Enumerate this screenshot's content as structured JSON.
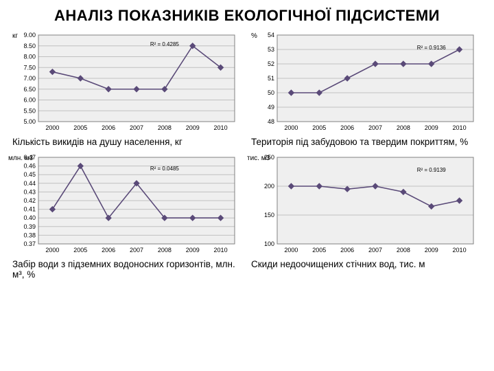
{
  "title": "АНАЛІЗ ПОКАЗНИКІВ ЕКОЛОГІЧНОЇ ПІДСИСТЕМИ",
  "common": {
    "plot_bg": "#efefef",
    "grid_color": "#c0c0c0",
    "axis_color": "#808080",
    "tick_font": 9,
    "marker_color": "#5a4a78",
    "line_color": "#5a4a78",
    "r2_font": 8,
    "r2_color": "#000000"
  },
  "charts": {
    "c1": {
      "unit": "кг",
      "caption": "Кількість викидів на душу населення, кг",
      "x": [
        "2000",
        "2005",
        "2006",
        "2007",
        "2008",
        "2009",
        "2010"
      ],
      "y": [
        7.3,
        7.0,
        6.5,
        6.5,
        6.5,
        8.5,
        7.5
      ],
      "ylim": [
        5,
        9
      ],
      "ytick_step": 0.5,
      "r2_label": "R² = 0.4285",
      "r2_x": 4,
      "r2_y": 8.5
    },
    "c2": {
      "unit": "%",
      "caption": "Територія під забудовою та твердим покриттям, %",
      "x": [
        "2000",
        "2005",
        "2006",
        "2007",
        "2008",
        "2009",
        "2010"
      ],
      "y": [
        50,
        50,
        51,
        52,
        52,
        52,
        53
      ],
      "ylim": [
        48,
        54
      ],
      "ytick_step": 1,
      "r2_label": "R² = 0.9136",
      "r2_x": 5,
      "r2_y": 53
    },
    "c3": {
      "unit": "млн. м3",
      "caption": "Забір води з підземних водоносних горизонтів, млн. м³, %",
      "x": [
        "2000",
        "2005",
        "2006",
        "2007",
        "2008",
        "2009",
        "2010"
      ],
      "y": [
        0.41,
        0.46,
        0.4,
        0.44,
        0.4,
        0.4,
        0.4
      ],
      "ylim": [
        0.37,
        0.47
      ],
      "ytick_step": 0.01,
      "r2_label": "R² = 0.0485",
      "r2_x": 4,
      "r2_y": 0.455
    },
    "c4": {
      "unit": "тис. м3",
      "caption": "Скиди недоочищених стічних вод, тис. м",
      "x": [
        "2000",
        "2005",
        "2006",
        "2007",
        "2008",
        "2009",
        "2010"
      ],
      "y": [
        200,
        200,
        195,
        200,
        190,
        165,
        175
      ],
      "ylim": [
        100,
        250
      ],
      "ytick_step": 50,
      "r2_label": "R² = 0.9139",
      "r2_x": 5,
      "r2_y": 225
    }
  }
}
